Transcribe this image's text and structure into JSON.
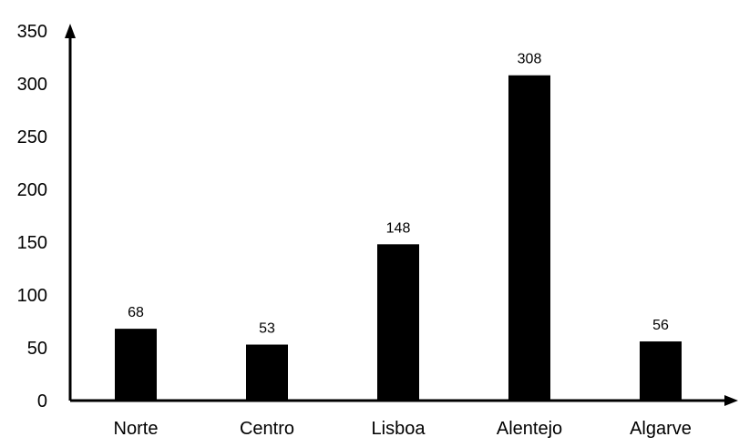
{
  "chart_data": {
    "type": "bar",
    "title": "",
    "xlabel": "",
    "ylabel": "",
    "categories": [
      "Norte",
      "Centro",
      "Lisboa",
      "Alentejo",
      "Algarve"
    ],
    "values": [
      68,
      53,
      148,
      308,
      56
    ],
    "data_labels": [
      "68",
      "53",
      "148",
      "308",
      "56"
    ],
    "ylim": [
      0,
      350
    ],
    "yticks": [
      0,
      50,
      100,
      150,
      200,
      250,
      300,
      350
    ],
    "ytick_labels": [
      "0",
      "50",
      "100",
      "150",
      "200",
      "250",
      "300",
      "350"
    ],
    "grid": false,
    "legend": "none",
    "bar_color": "#000000",
    "axis_color": "#000000"
  }
}
